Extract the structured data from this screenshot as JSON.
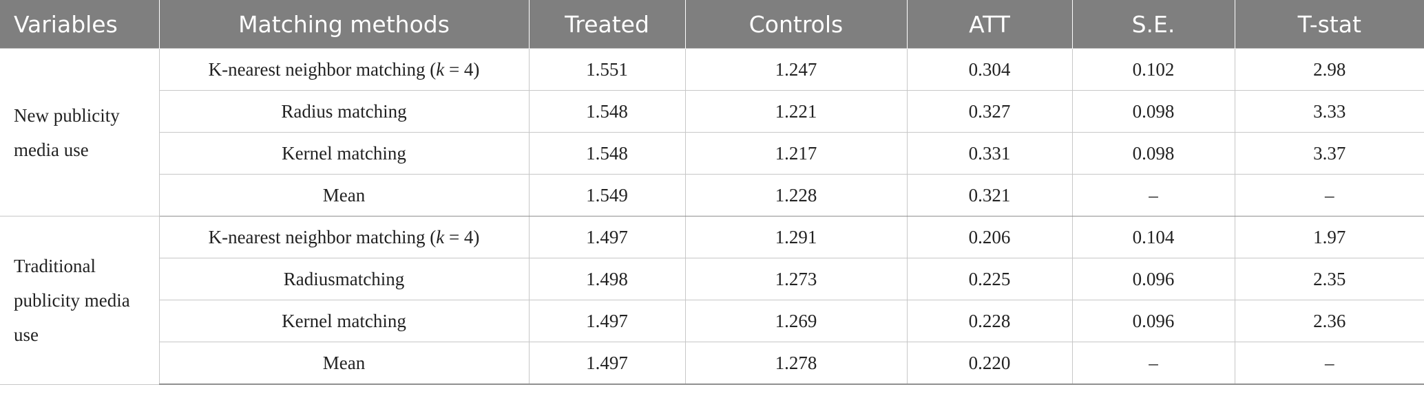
{
  "table": {
    "headers": [
      "Variables",
      "Matching methods",
      "Treated",
      "Controls",
      "ATT",
      "S.E.",
      "T-stat"
    ],
    "groups": [
      {
        "variable": "New publicity media use",
        "rows": [
          {
            "method_prefix": "K-nearest neighbor matching (",
            "method_italic": "k",
            "method_suffix": " = 4)",
            "treated": "1.551",
            "controls": "1.247",
            "att": "0.304",
            "se": "0.102",
            "tstat": "2.98"
          },
          {
            "method_prefix": "Radius matching",
            "method_italic": "",
            "method_suffix": "",
            "treated": "1.548",
            "controls": "1.221",
            "att": "0.327",
            "se": "0.098",
            "tstat": "3.33"
          },
          {
            "method_prefix": "Kernel matching",
            "method_italic": "",
            "method_suffix": "",
            "treated": "1.548",
            "controls": "1.217",
            "att": "0.331",
            "se": "0.098",
            "tstat": "3.37"
          },
          {
            "method_prefix": "Mean",
            "method_italic": "",
            "method_suffix": "",
            "treated": "1.549",
            "controls": "1.228",
            "att": "0.321",
            "se": "–",
            "tstat": "–"
          }
        ]
      },
      {
        "variable": "Traditional publicity media use",
        "rows": [
          {
            "method_prefix": "K-nearest neighbor matching (",
            "method_italic": "k",
            "method_suffix": " = 4)",
            "treated": "1.497",
            "controls": "1.291",
            "att": "0.206",
            "se": "0.104",
            "tstat": "1.97"
          },
          {
            "method_prefix": "Radiusmatching",
            "method_italic": "",
            "method_suffix": "",
            "treated": "1.498",
            "controls": "1.273",
            "att": "0.225",
            "se": "0.096",
            "tstat": "2.35"
          },
          {
            "method_prefix": "Kernel matching",
            "method_italic": "",
            "method_suffix": "",
            "treated": "1.497",
            "controls": "1.269",
            "att": "0.228",
            "se": "0.096",
            "tstat": "2.36"
          },
          {
            "method_prefix": "Mean",
            "method_italic": "",
            "method_suffix": "",
            "treated": "1.497",
            "controls": "1.278",
            "att": "0.220",
            "se": "–",
            "tstat": "–"
          }
        ]
      }
    ]
  }
}
